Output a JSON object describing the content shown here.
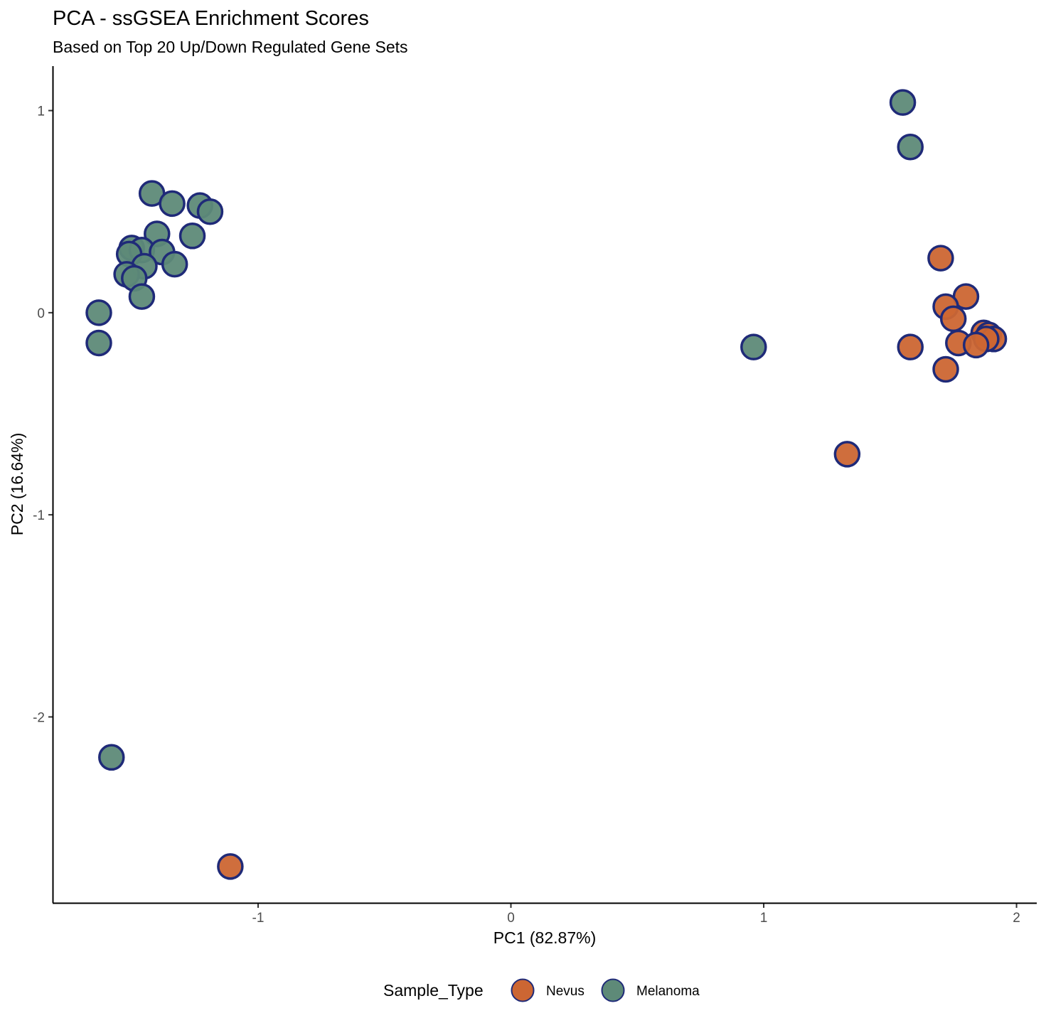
{
  "chart_data": {
    "type": "scatter",
    "title": "PCA - ssGSEA Enrichment Scores",
    "subtitle": "Based on Top 20 Up/Down Regulated Gene Sets",
    "xlabel": "PC1 (82.87%)",
    "ylabel": "PC2 (16.64%)",
    "xlim": [
      -1.81,
      2.08
    ],
    "ylim": [
      -2.92,
      1.22
    ],
    "x_ticks": [
      -1,
      0,
      1,
      2
    ],
    "y_ticks": [
      1,
      0,
      -1,
      -2
    ],
    "x_tick_labels": [
      "-1",
      "0",
      "1",
      "2"
    ],
    "y_tick_labels": [
      "1",
      "0",
      "-1",
      "-2"
    ],
    "grid": false,
    "legend": {
      "title": "Sample_Type",
      "position": "bottom",
      "entries": [
        {
          "label": "Nevus",
          "color": "#CC6633"
        },
        {
          "label": "Melanoma",
          "color": "#5E8A78"
        }
      ]
    },
    "marker_stroke_color": "#1F2A78",
    "series": [
      {
        "name": "Nevus",
        "color": "#CC6633",
        "points": [
          {
            "x": 1.7,
            "y": 0.27
          },
          {
            "x": 1.8,
            "y": 0.08
          },
          {
            "x": 1.72,
            "y": 0.03
          },
          {
            "x": 1.75,
            "y": -0.03
          },
          {
            "x": 1.87,
            "y": -0.1
          },
          {
            "x": 1.89,
            "y": -0.11
          },
          {
            "x": 1.91,
            "y": -0.13
          },
          {
            "x": 1.88,
            "y": -0.13
          },
          {
            "x": 1.77,
            "y": -0.15
          },
          {
            "x": 1.84,
            "y": -0.16
          },
          {
            "x": 1.58,
            "y": -0.17
          },
          {
            "x": 1.72,
            "y": -0.28
          },
          {
            "x": 1.33,
            "y": -0.7
          },
          {
            "x": -1.11,
            "y": -2.74
          }
        ]
      },
      {
        "name": "Melanoma",
        "color": "#5E8A78",
        "points": [
          {
            "x": 1.55,
            "y": 1.04
          },
          {
            "x": 1.58,
            "y": 0.82
          },
          {
            "x": -1.42,
            "y": 0.59
          },
          {
            "x": -1.34,
            "y": 0.54
          },
          {
            "x": -1.23,
            "y": 0.53
          },
          {
            "x": -1.19,
            "y": 0.5
          },
          {
            "x": -1.4,
            "y": 0.39
          },
          {
            "x": -1.26,
            "y": 0.38
          },
          {
            "x": -1.5,
            "y": 0.32
          },
          {
            "x": -1.46,
            "y": 0.31
          },
          {
            "x": -1.38,
            "y": 0.3
          },
          {
            "x": -1.51,
            "y": 0.29
          },
          {
            "x": -1.33,
            "y": 0.24
          },
          {
            "x": -1.45,
            "y": 0.23
          },
          {
            "x": -1.52,
            "y": 0.19
          },
          {
            "x": -1.49,
            "y": 0.17
          },
          {
            "x": -1.46,
            "y": 0.08
          },
          {
            "x": -1.63,
            "y": 0.0
          },
          {
            "x": -1.63,
            "y": -0.15
          },
          {
            "x": 0.96,
            "y": -0.17
          },
          {
            "x": -1.58,
            "y": -2.2
          }
        ]
      }
    ]
  }
}
